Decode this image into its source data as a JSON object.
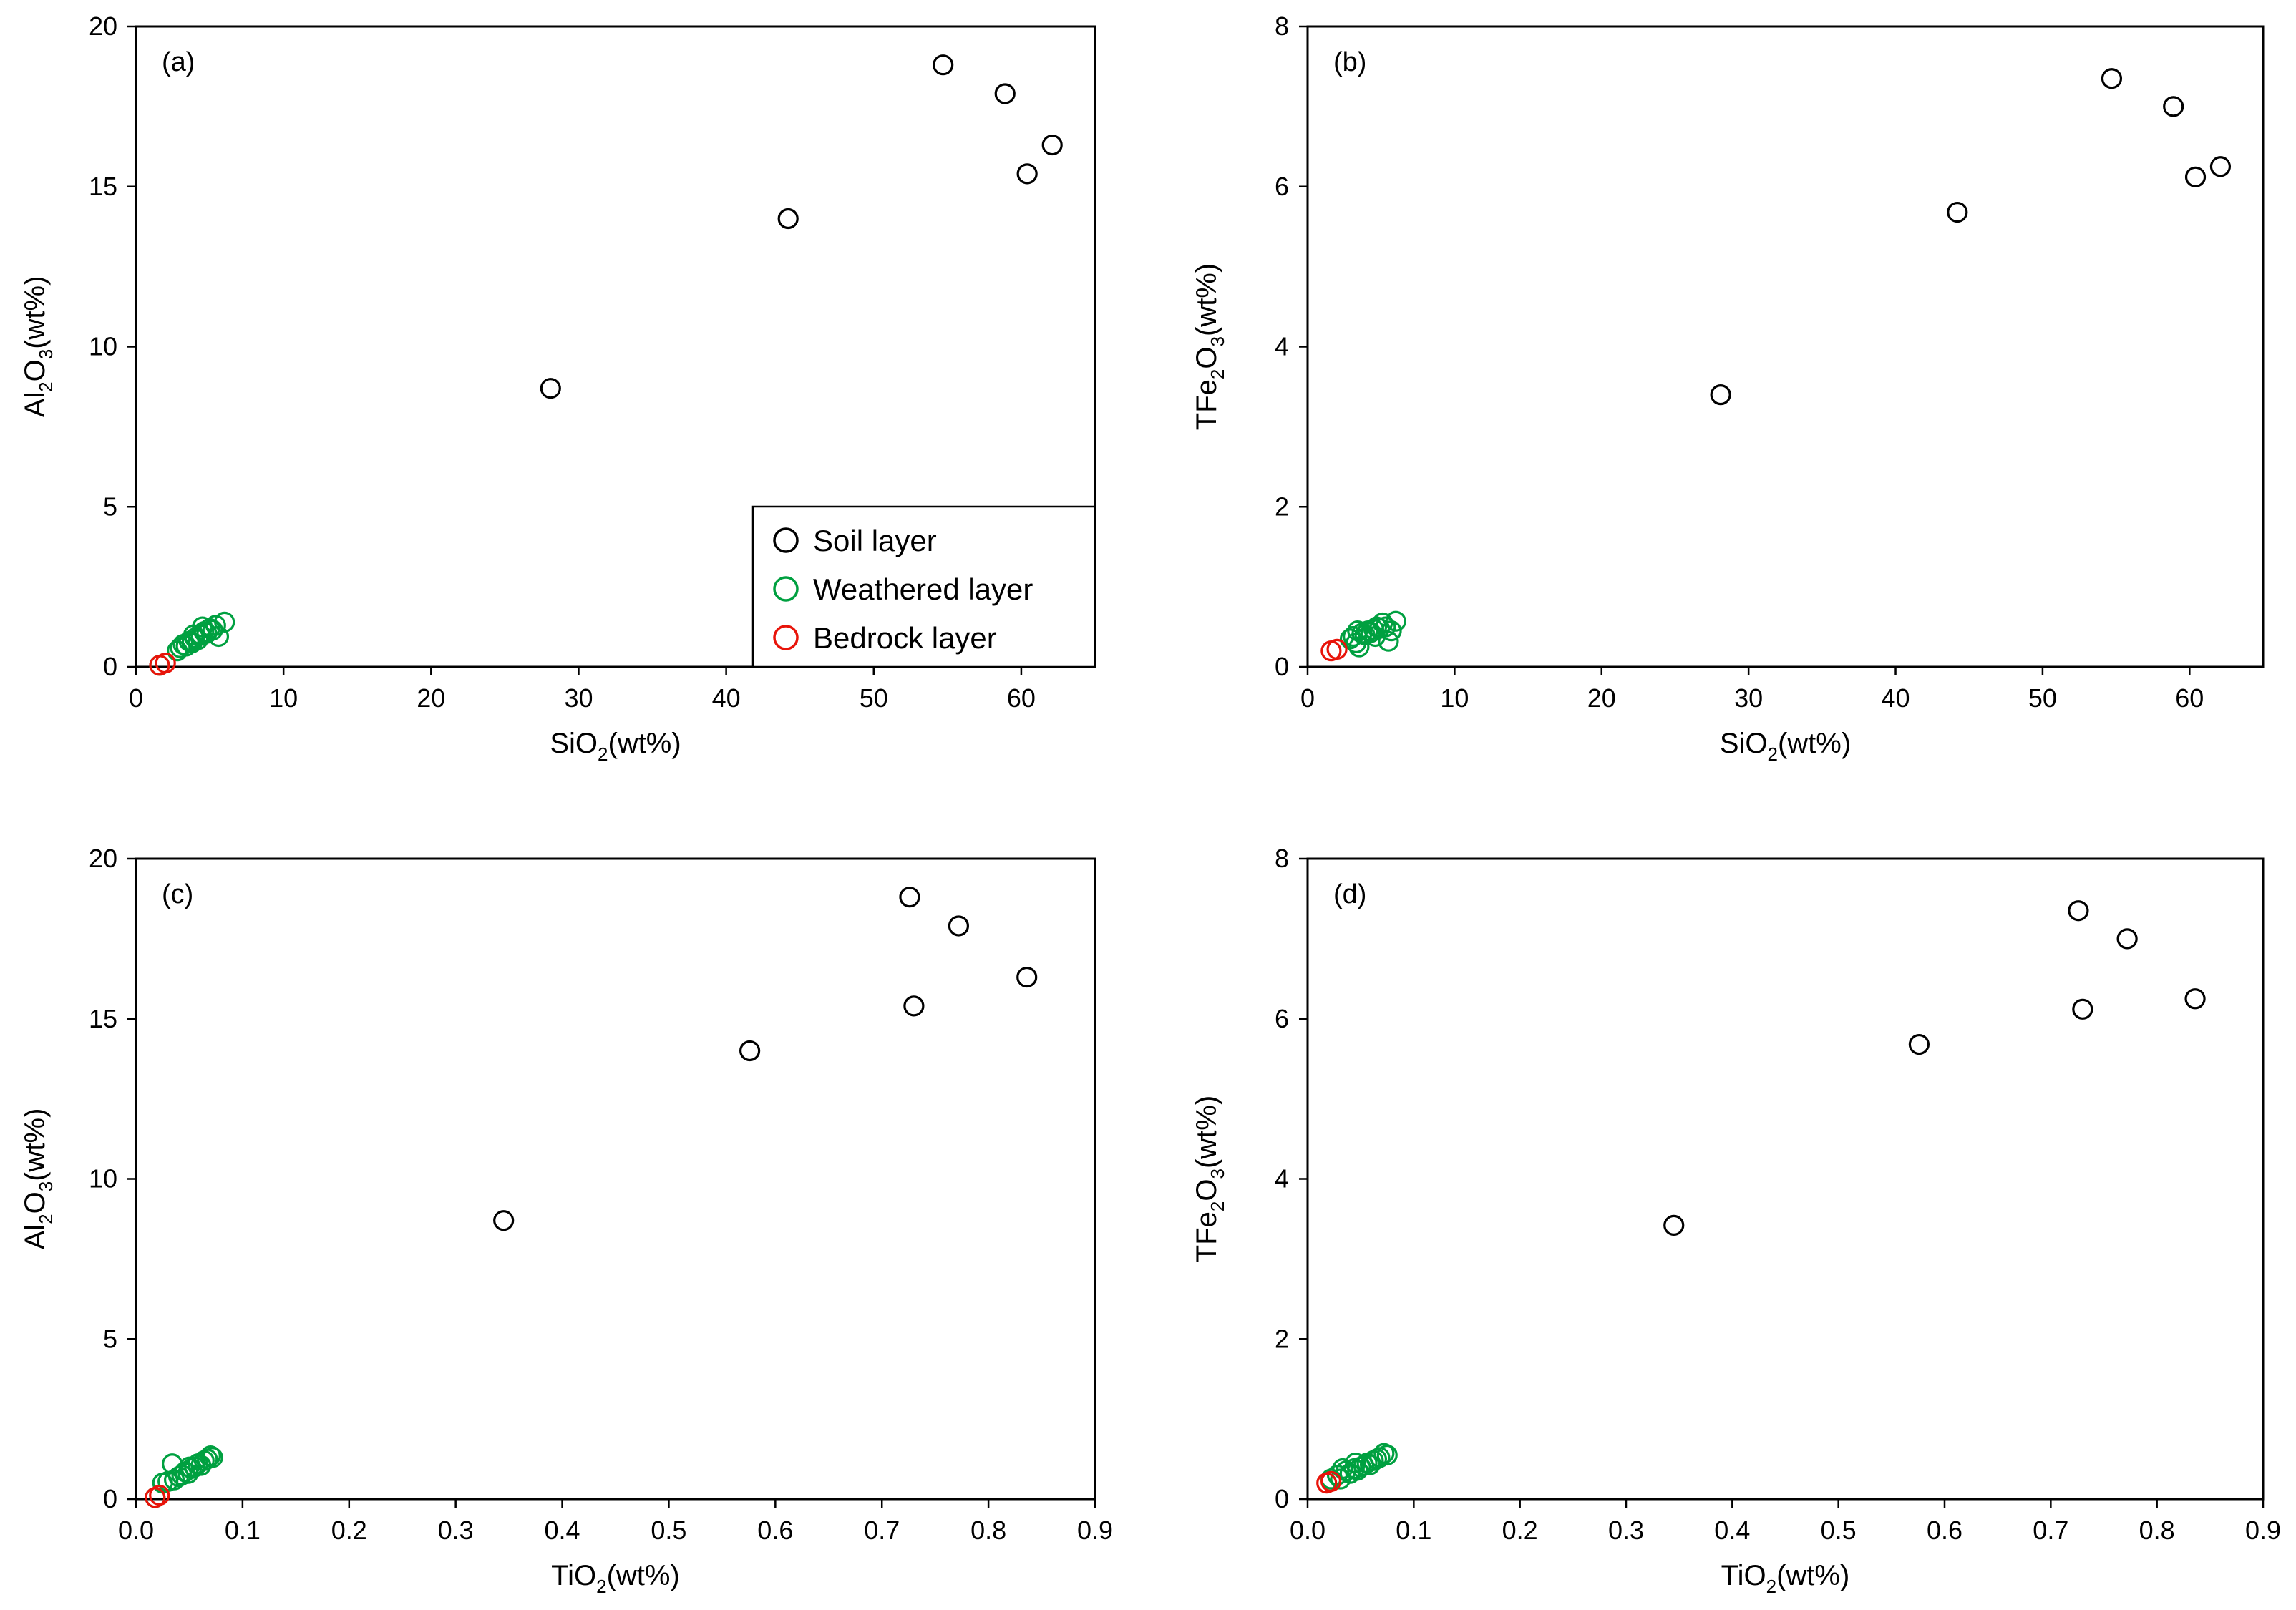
{
  "legend": {
    "entries": [
      {
        "name": "Soil layer",
        "color": "#000000"
      },
      {
        "name": "Weathered layer",
        "color": "#00A040"
      },
      {
        "name": "Bedrock layer",
        "color": "#E8140A"
      }
    ]
  },
  "chart_data": [
    {
      "type": "scatter",
      "panel_label": "(a)",
      "xlabel": {
        "base": "SiO",
        "sub": "2",
        "rest": "(wt%)"
      },
      "ylabel": {
        "pre": "Al",
        "sub1": "2",
        "mid": "O",
        "sub2": "3",
        "rest": "(wt%)"
      },
      "xlim": [
        0,
        65
      ],
      "ylim": [
        0,
        20
      ],
      "xticks": [
        0,
        10,
        20,
        30,
        40,
        50,
        60
      ],
      "yticks": [
        0,
        5,
        10,
        15,
        20
      ],
      "xtick_labels": [
        "0",
        "10",
        "20",
        "30",
        "40",
        "50",
        "60"
      ],
      "ytick_labels": [
        "0",
        "5",
        "10",
        "15",
        "20"
      ],
      "legend_visible": true,
      "series": [
        {
          "name": "Soil layer",
          "color": "#000000",
          "points": [
            [
              28.1,
              8.7
            ],
            [
              44.2,
              14.0
            ],
            [
              54.7,
              18.8
            ],
            [
              58.9,
              17.9
            ],
            [
              60.4,
              15.4
            ],
            [
              62.1,
              16.3
            ]
          ]
        },
        {
          "name": "Weathered layer",
          "color": "#00A040",
          "points": [
            [
              1.6,
              0.05
            ],
            [
              2.8,
              0.5
            ],
            [
              3.0,
              0.6
            ],
            [
              3.2,
              0.7
            ],
            [
              3.4,
              0.65
            ],
            [
              3.6,
              0.8
            ],
            [
              3.8,
              0.75
            ],
            [
              4.0,
              0.9
            ],
            [
              4.2,
              0.85
            ],
            [
              4.4,
              1.0
            ],
            [
              4.6,
              1.1
            ],
            [
              4.8,
              1.05
            ],
            [
              5.0,
              1.2
            ],
            [
              5.2,
              1.15
            ],
            [
              5.4,
              1.3
            ],
            [
              5.6,
              0.95
            ],
            [
              6.0,
              1.4
            ],
            [
              4.5,
              1.25
            ],
            [
              3.9,
              1.0
            ]
          ]
        },
        {
          "name": "Bedrock layer",
          "color": "#E8140A",
          "points": [
            [
              1.6,
              0.05
            ],
            [
              2.0,
              0.12
            ]
          ]
        }
      ]
    },
    {
      "type": "scatter",
      "panel_label": "(b)",
      "xlabel": {
        "base": "SiO",
        "sub": "2",
        "rest": "(wt%)"
      },
      "ylabel": {
        "pre": "TFe",
        "sub1": "2",
        "mid": "O",
        "sub2": "3",
        "rest": "(wt%)"
      },
      "xlim": [
        0,
        65
      ],
      "ylim": [
        0,
        8
      ],
      "xticks": [
        0,
        10,
        20,
        30,
        40,
        50,
        60
      ],
      "yticks": [
        0,
        2,
        4,
        6,
        8
      ],
      "xtick_labels": [
        "0",
        "10",
        "20",
        "30",
        "40",
        "50",
        "60"
      ],
      "ytick_labels": [
        "0",
        "2",
        "4",
        "6",
        "8"
      ],
      "legend_visible": false,
      "series": [
        {
          "name": "Soil layer",
          "color": "#000000",
          "points": [
            [
              28.1,
              3.4
            ],
            [
              44.2,
              5.68
            ],
            [
              54.7,
              7.35
            ],
            [
              58.9,
              7.0
            ],
            [
              60.4,
              6.12
            ],
            [
              62.1,
              6.25
            ]
          ]
        },
        {
          "name": "Weathered layer",
          "color": "#00A040",
          "points": [
            [
              2.9,
              0.35
            ],
            [
              3.1,
              0.38
            ],
            [
              3.3,
              0.3
            ],
            [
              3.5,
              0.25
            ],
            [
              3.7,
              0.42
            ],
            [
              3.9,
              0.4
            ],
            [
              4.1,
              0.45
            ],
            [
              4.3,
              0.43
            ],
            [
              4.5,
              0.47
            ],
            [
              4.7,
              0.5
            ],
            [
              4.9,
              0.48
            ],
            [
              5.1,
              0.55
            ],
            [
              5.3,
              0.5
            ],
            [
              5.5,
              0.32
            ],
            [
              5.7,
              0.45
            ],
            [
              6.0,
              0.57
            ],
            [
              3.4,
              0.45
            ],
            [
              4.6,
              0.38
            ]
          ]
        },
        {
          "name": "Bedrock layer",
          "color": "#E8140A",
          "points": [
            [
              1.6,
              0.2
            ],
            [
              2.0,
              0.22
            ]
          ]
        }
      ]
    },
    {
      "type": "scatter",
      "panel_label": "(c)",
      "xlabel": {
        "base": "TiO",
        "sub": "2",
        "rest": "(wt%)"
      },
      "ylabel": {
        "pre": "Al",
        "sub1": "2",
        "mid": "O",
        "sub2": "3",
        "rest": "(wt%)"
      },
      "xlim": [
        0,
        0.9
      ],
      "ylim": [
        0,
        20
      ],
      "xticks": [
        0,
        0.1,
        0.2,
        0.3,
        0.4,
        0.5,
        0.6,
        0.7,
        0.8,
        0.9
      ],
      "yticks": [
        0,
        5,
        10,
        15,
        20
      ],
      "xtick_labels": [
        "0.0",
        "0.1",
        "0.2",
        "0.3",
        "0.4",
        "0.5",
        "0.6",
        "0.7",
        "0.8",
        "0.9"
      ],
      "ytick_labels": [
        "0",
        "5",
        "10",
        "15",
        "20"
      ],
      "legend_visible": false,
      "series": [
        {
          "name": "Soil layer",
          "color": "#000000",
          "points": [
            [
              0.345,
              8.7
            ],
            [
              0.576,
              14.0
            ],
            [
              0.726,
              18.8
            ],
            [
              0.772,
              17.9
            ],
            [
              0.73,
              15.4
            ],
            [
              0.836,
              16.3
            ]
          ]
        },
        {
          "name": "Weathered layer",
          "color": "#00A040",
          "points": [
            [
              0.018,
              0.05
            ],
            [
              0.025,
              0.5
            ],
            [
              0.03,
              0.55
            ],
            [
              0.034,
              1.1
            ],
            [
              0.036,
              0.6
            ],
            [
              0.04,
              0.7
            ],
            [
              0.043,
              0.75
            ],
            [
              0.046,
              0.85
            ],
            [
              0.049,
              0.8
            ],
            [
              0.052,
              0.95
            ],
            [
              0.055,
              1.0
            ],
            [
              0.058,
              1.1
            ],
            [
              0.061,
              1.05
            ],
            [
              0.064,
              1.2
            ],
            [
              0.067,
              1.25
            ],
            [
              0.07,
              1.35
            ],
            [
              0.072,
              1.3
            ],
            [
              0.05,
              1.0
            ]
          ]
        },
        {
          "name": "Bedrock layer",
          "color": "#E8140A",
          "points": [
            [
              0.018,
              0.05
            ],
            [
              0.022,
              0.12
            ]
          ]
        }
      ]
    },
    {
      "type": "scatter",
      "panel_label": "(d)",
      "xlabel": {
        "base": "TiO",
        "sub": "2",
        "rest": "(wt%)"
      },
      "ylabel": {
        "pre": "TFe",
        "sub1": "2",
        "mid": "O",
        "sub2": "3",
        "rest": "(wt%)"
      },
      "xlim": [
        0,
        0.9
      ],
      "ylim": [
        0,
        8
      ],
      "xticks": [
        0,
        0.1,
        0.2,
        0.3,
        0.4,
        0.5,
        0.6,
        0.7,
        0.8,
        0.9
      ],
      "yticks": [
        0,
        2,
        4,
        6,
        8
      ],
      "xtick_labels": [
        "0.0",
        "0.1",
        "0.2",
        "0.3",
        "0.4",
        "0.5",
        "0.6",
        "0.7",
        "0.8",
        "0.9"
      ],
      "ytick_labels": [
        "0",
        "2",
        "4",
        "6",
        "8"
      ],
      "legend_visible": false,
      "series": [
        {
          "name": "Soil layer",
          "color": "#000000",
          "points": [
            [
              0.345,
              3.42
            ],
            [
              0.576,
              5.68
            ],
            [
              0.726,
              7.35
            ],
            [
              0.772,
              7.0
            ],
            [
              0.73,
              6.12
            ],
            [
              0.836,
              6.25
            ]
          ]
        },
        {
          "name": "Weathered layer",
          "color": "#00A040",
          "points": [
            [
              0.022,
              0.25
            ],
            [
              0.028,
              0.3
            ],
            [
              0.031,
              0.25
            ],
            [
              0.033,
              0.38
            ],
            [
              0.036,
              0.35
            ],
            [
              0.04,
              0.32
            ],
            [
              0.044,
              0.38
            ],
            [
              0.047,
              0.36
            ],
            [
              0.05,
              0.4
            ],
            [
              0.053,
              0.42
            ],
            [
              0.056,
              0.45
            ],
            [
              0.059,
              0.43
            ],
            [
              0.062,
              0.48
            ],
            [
              0.065,
              0.5
            ],
            [
              0.068,
              0.52
            ],
            [
              0.072,
              0.57
            ],
            [
              0.075,
              0.55
            ],
            [
              0.045,
              0.45
            ]
          ]
        },
        {
          "name": "Bedrock layer",
          "color": "#E8140A",
          "points": [
            [
              0.018,
              0.2
            ],
            [
              0.022,
              0.22
            ]
          ]
        }
      ]
    }
  ]
}
